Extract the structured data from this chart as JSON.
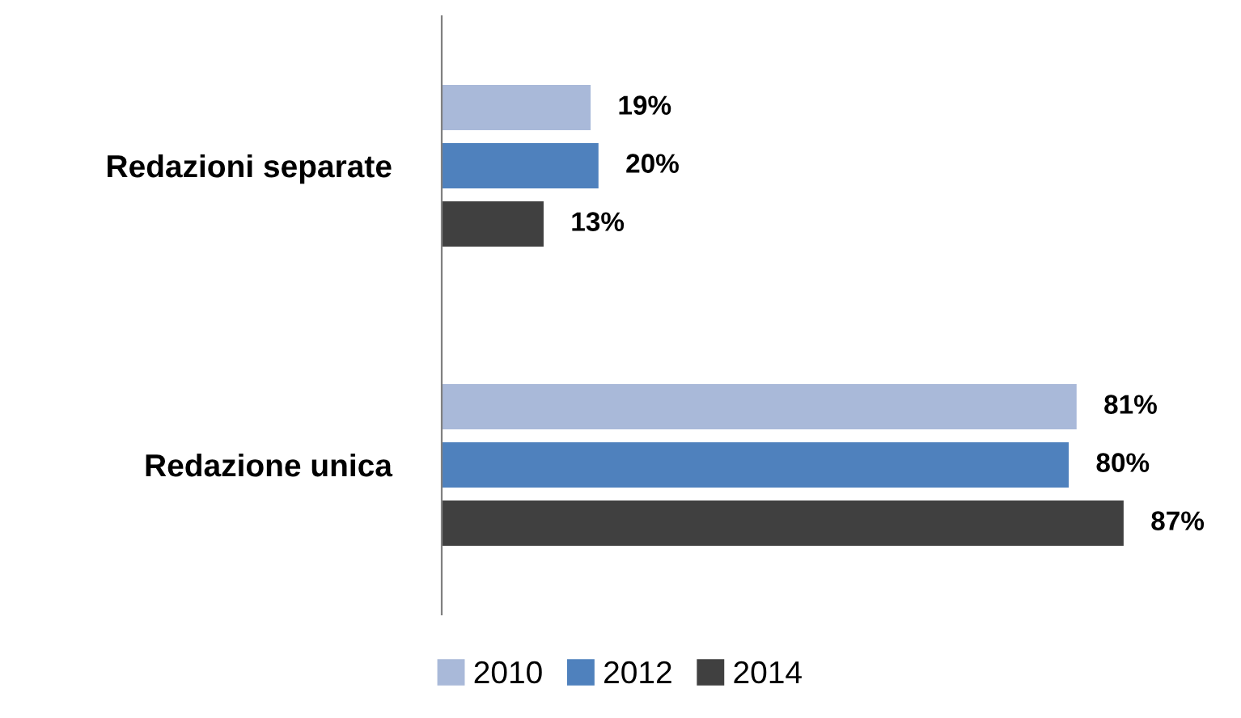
{
  "chart_data": {
    "type": "bar",
    "orientation": "horizontal",
    "categories": [
      "Redazioni separate",
      "Redazione unica"
    ],
    "series": [
      {
        "name": "2010",
        "color": "#a9b9d9",
        "values": [
          19,
          81
        ],
        "value_labels": [
          "19%",
          "81%"
        ]
      },
      {
        "name": "2012",
        "color": "#4f81bd",
        "values": [
          20,
          80
        ],
        "value_labels": [
          "20%",
          "80%"
        ]
      },
      {
        "name": "2014",
        "color": "#404040",
        "values": [
          13,
          87
        ],
        "value_labels": [
          "13%",
          "87%"
        ]
      }
    ],
    "legend": "bottom",
    "grid": false
  }
}
